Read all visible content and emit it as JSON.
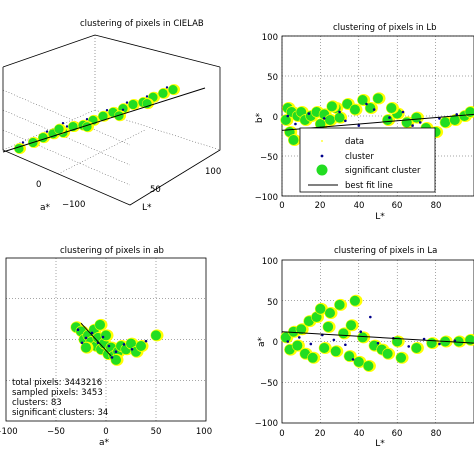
{
  "chart_data": [
    {
      "type": "scatter",
      "panel": "cielab-3d",
      "title": "clustering of pixels in CIELAB",
      "xlabel": "L*",
      "ylabel": "a*",
      "x_ticks": [
        "50",
        "100"
      ],
      "y_ticks": [
        "0",
        "−100"
      ],
      "xlim": [
        0,
        100
      ],
      "ylim": [
        -100,
        100
      ],
      "grid": true,
      "colors": {
        "data": "#ffff00",
        "cluster": "#00008b",
        "significant": "#22dd22",
        "fit": "#000000"
      },
      "series": [
        {
          "name": "significant cluster",
          "values": [
            [
              8,
              -10
            ],
            [
              15,
              -5
            ],
            [
              20,
              0
            ],
            [
              25,
              2
            ],
            [
              30,
              -3
            ],
            [
              35,
              5
            ],
            [
              40,
              0
            ],
            [
              45,
              5
            ],
            [
              50,
              8
            ],
            [
              55,
              10
            ],
            [
              60,
              12
            ],
            [
              65,
              15
            ],
            [
              70,
              12
            ],
            [
              75,
              18
            ],
            [
              80,
              20
            ],
            [
              85,
              22
            ],
            [
              28,
              10
            ],
            [
              42,
              -8
            ],
            [
              58,
              -5
            ],
            [
              72,
              5
            ]
          ]
        }
      ]
    },
    {
      "type": "scatter",
      "panel": "Lb",
      "title": "clustering of pixels in Lb",
      "xlabel": "L*",
      "ylabel": "b*",
      "x_ticks": [
        "0",
        "20",
        "40",
        "60",
        "80"
      ],
      "y_ticks": [
        "100",
        "50",
        "0",
        "−50",
        "−100"
      ],
      "xlim": [
        0,
        100
      ],
      "ylim": [
        -100,
        100
      ],
      "grid": true,
      "legend": {
        "placement": "center",
        "entries": [
          "data",
          "cluster",
          "significant cluster",
          "best fit line"
        ]
      },
      "significant": [
        [
          2,
          -5
        ],
        [
          3,
          10
        ],
        [
          4,
          -20
        ],
        [
          5,
          5
        ],
        [
          6,
          -30
        ],
        [
          8,
          0
        ],
        [
          10,
          5
        ],
        [
          12,
          -5
        ],
        [
          15,
          0
        ],
        [
          18,
          5
        ],
        [
          20,
          -10
        ],
        [
          22,
          2
        ],
        [
          25,
          -5
        ],
        [
          28,
          10
        ],
        [
          30,
          -2
        ],
        [
          34,
          15
        ],
        [
          38,
          8
        ],
        [
          42,
          20
        ],
        [
          46,
          10
        ],
        [
          50,
          22
        ],
        [
          55,
          -5
        ],
        [
          60,
          3
        ],
        [
          65,
          -8
        ],
        [
          70,
          -2
        ],
        [
          75,
          -15
        ],
        [
          80,
          -20
        ],
        [
          85,
          -8
        ],
        [
          90,
          -5
        ],
        [
          95,
          0
        ],
        [
          98,
          5
        ],
        [
          57,
          10
        ],
        [
          35,
          -25
        ],
        [
          26,
          12
        ]
      ],
      "cluster": [
        [
          3,
          0
        ],
        [
          7,
          -10
        ],
        [
          14,
          3
        ],
        [
          22,
          -3
        ],
        [
          30,
          5
        ],
        [
          40,
          -12
        ],
        [
          48,
          8
        ],
        [
          56,
          -2
        ],
        [
          63,
          5
        ],
        [
          72,
          -8
        ],
        [
          82,
          -3
        ],
        [
          91,
          2
        ],
        [
          44,
          15
        ],
        [
          33,
          -6
        ],
        [
          68,
          -12
        ],
        [
          20,
          -15
        ]
      ],
      "fit": {
        "x": [
          0,
          100
        ],
        "y": [
          -18,
          2
        ]
      }
    },
    {
      "type": "scatter",
      "panel": "ab",
      "title": "clustering of pixels in ab",
      "xlabel": "a*",
      "ylabel": "",
      "x_ticks": [
        "−100",
        "−50",
        "0",
        "50",
        "100"
      ],
      "xlim": [
        -100,
        100
      ],
      "ylim": [
        -100,
        100
      ],
      "grid": true,
      "significant": [
        [
          -30,
          15
        ],
        [
          -25,
          10
        ],
        [
          -22,
          0
        ],
        [
          -18,
          5
        ],
        [
          -15,
          -3
        ],
        [
          -12,
          12
        ],
        [
          -10,
          -8
        ],
        [
          -8,
          2
        ],
        [
          -5,
          -12
        ],
        [
          -2,
          -5
        ],
        [
          0,
          5
        ],
        [
          2,
          -18
        ],
        [
          5,
          -10
        ],
        [
          8,
          -20
        ],
        [
          12,
          -15
        ],
        [
          15,
          -8
        ],
        [
          20,
          -12
        ],
        [
          25,
          -5
        ],
        [
          30,
          -15
        ],
        [
          35,
          -8
        ],
        [
          50,
          5
        ],
        [
          10,
          -25
        ],
        [
          -20,
          -10
        ],
        [
          -6,
          18
        ]
      ],
      "cluster": [
        [
          -28,
          12
        ],
        [
          -20,
          2
        ],
        [
          -14,
          8
        ],
        [
          -8,
          -4
        ],
        [
          -3,
          3
        ],
        [
          3,
          -8
        ],
        [
          10,
          -15
        ],
        [
          18,
          -6
        ],
        [
          26,
          -12
        ],
        [
          40,
          -2
        ],
        [
          -24,
          -4
        ],
        [
          6,
          -22
        ]
      ],
      "fit": {
        "x": [
          -25,
          5
        ],
        "y": [
          20,
          -20
        ]
      },
      "stats": [
        {
          "label": "total pixels: 3443216"
        },
        {
          "label": "sampled pixels: 3453"
        },
        {
          "label": "clusters: 83"
        },
        {
          "label": "significant clusters: 34"
        }
      ]
    },
    {
      "type": "scatter",
      "panel": "La",
      "title": "clustering of pixels in La",
      "xlabel": "L*",
      "ylabel": "a*",
      "x_ticks": [
        "0",
        "20",
        "40",
        "60",
        "80"
      ],
      "y_ticks": [
        "100",
        "50",
        "0",
        "−50",
        "−100"
      ],
      "xlim": [
        0,
        100
      ],
      "ylim": [
        -100,
        100
      ],
      "grid": true,
      "significant": [
        [
          2,
          5
        ],
        [
          4,
          -10
        ],
        [
          6,
          12
        ],
        [
          8,
          -5
        ],
        [
          10,
          15
        ],
        [
          12,
          -15
        ],
        [
          14,
          25
        ],
        [
          16,
          -20
        ],
        [
          18,
          30
        ],
        [
          20,
          40
        ],
        [
          22,
          -8
        ],
        [
          25,
          35
        ],
        [
          28,
          -12
        ],
        [
          30,
          45
        ],
        [
          32,
          10
        ],
        [
          35,
          -18
        ],
        [
          38,
          50
        ],
        [
          40,
          -25
        ],
        [
          42,
          5
        ],
        [
          45,
          -30
        ],
        [
          48,
          -5
        ],
        [
          52,
          -10
        ],
        [
          55,
          -15
        ],
        [
          62,
          -20
        ],
        [
          70,
          -8
        ],
        [
          78,
          -2
        ],
        [
          85,
          0
        ],
        [
          92,
          0
        ],
        [
          98,
          2
        ],
        [
          60,
          0
        ],
        [
          24,
          18
        ],
        [
          36,
          20
        ]
      ],
      "cluster": [
        [
          3,
          0
        ],
        [
          9,
          5
        ],
        [
          15,
          -3
        ],
        [
          21,
          8
        ],
        [
          27,
          2
        ],
        [
          33,
          -4
        ],
        [
          41,
          12
        ],
        [
          50,
          -2
        ],
        [
          58,
          4
        ],
        [
          66,
          -6
        ],
        [
          74,
          3
        ],
        [
          82,
          -3
        ],
        [
          90,
          1
        ],
        [
          46,
          30
        ],
        [
          37,
          -22
        ]
      ],
      "fit": {
        "x": [
          0,
          100
        ],
        "y": [
          12,
          -2
        ]
      }
    }
  ]
}
